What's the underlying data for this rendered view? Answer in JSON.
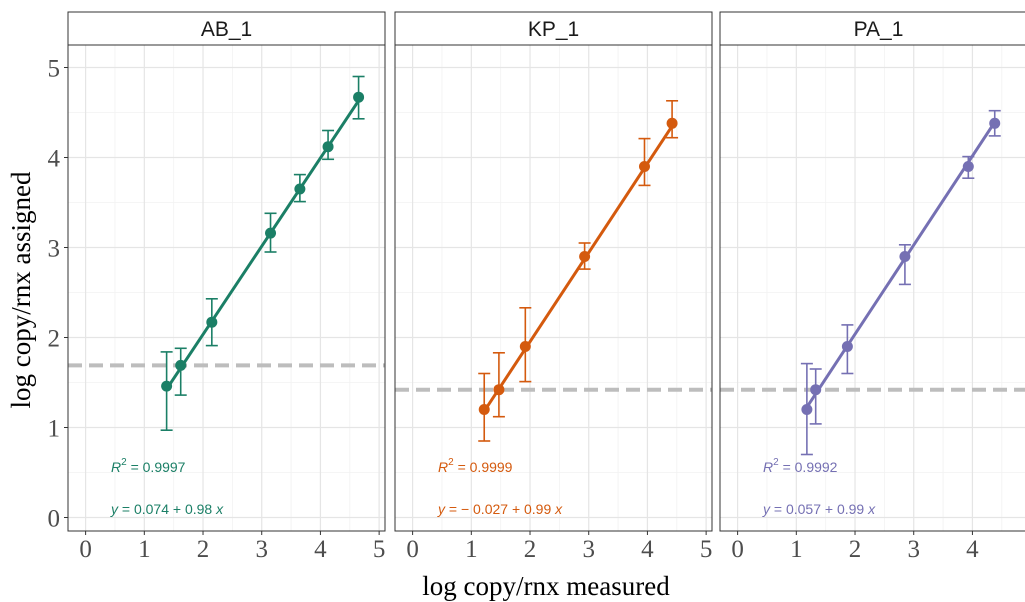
{
  "chart_data": {
    "type": "scatter",
    "xlabel": "log copy/rnx measured",
    "ylabel": "log copy/rnx assigned",
    "xlim": [
      -0.3,
      5.1
    ],
    "ylim": [
      -0.15,
      5.25
    ],
    "xticks": [
      0,
      1,
      2,
      3,
      4,
      5
    ],
    "yticks": [
      0,
      1,
      2,
      3,
      4,
      5
    ],
    "grid": true,
    "facets": [
      {
        "label": "AB_1",
        "color": "#1b7f66",
        "threshold": 1.69,
        "x": [
          1.38,
          1.62,
          2.15,
          3.15,
          3.65,
          4.13,
          4.65
        ],
        "y": [
          1.46,
          1.69,
          2.17,
          3.16,
          3.65,
          4.12,
          4.67
        ],
        "err_low": [
          0.97,
          1.36,
          1.91,
          2.95,
          3.51,
          3.98,
          4.43
        ],
        "err_high": [
          1.84,
          1.88,
          2.43,
          3.38,
          3.81,
          4.3,
          4.9
        ],
        "fit": {
          "intercept": 0.074,
          "slope": 0.98
        },
        "r2_prefix": "R",
        "r2_exp": "2",
        "r2_value": " = 0.9997",
        "eq_y": "y",
        "eq_middle": " = 0.074 + 0.98 ",
        "eq_x": "x"
      },
      {
        "label": "KP_1",
        "color": "#d45a0e",
        "threshold": 1.42,
        "x": [
          1.22,
          1.47,
          1.92,
          2.93,
          3.95,
          4.42
        ],
        "y": [
          1.2,
          1.42,
          1.9,
          2.9,
          3.9,
          4.38
        ],
        "err_low": [
          0.85,
          1.12,
          1.51,
          2.76,
          3.69,
          4.22
        ],
        "err_high": [
          1.6,
          1.83,
          2.33,
          3.05,
          4.21,
          4.63
        ],
        "fit": {
          "intercept": -0.027,
          "slope": 0.99
        },
        "r2_prefix": "R",
        "r2_exp": "2",
        "r2_value": " = 0.9999",
        "eq_y": "y",
        "eq_middle": " = − 0.027 + 0.99 ",
        "eq_x": "x"
      },
      {
        "label": "PA_1",
        "color": "#7570b3",
        "threshold": 1.42,
        "x": [
          1.18,
          1.33,
          1.87,
          2.85,
          3.93,
          4.38
        ],
        "y": [
          1.2,
          1.42,
          1.9,
          2.9,
          3.9,
          4.38
        ],
        "err_low": [
          0.7,
          1.04,
          1.6,
          2.59,
          3.77,
          4.24
        ],
        "err_high": [
          1.71,
          1.65,
          2.14,
          3.03,
          4.01,
          4.52
        ],
        "fit": {
          "intercept": 0.057,
          "slope": 0.99
        },
        "r2_prefix": "R",
        "r2_exp": "2",
        "r2_value": " = 0.9992",
        "eq_y": "y",
        "eq_middle": " = 0.057 + 0.99 ",
        "eq_x": "x"
      }
    ]
  }
}
